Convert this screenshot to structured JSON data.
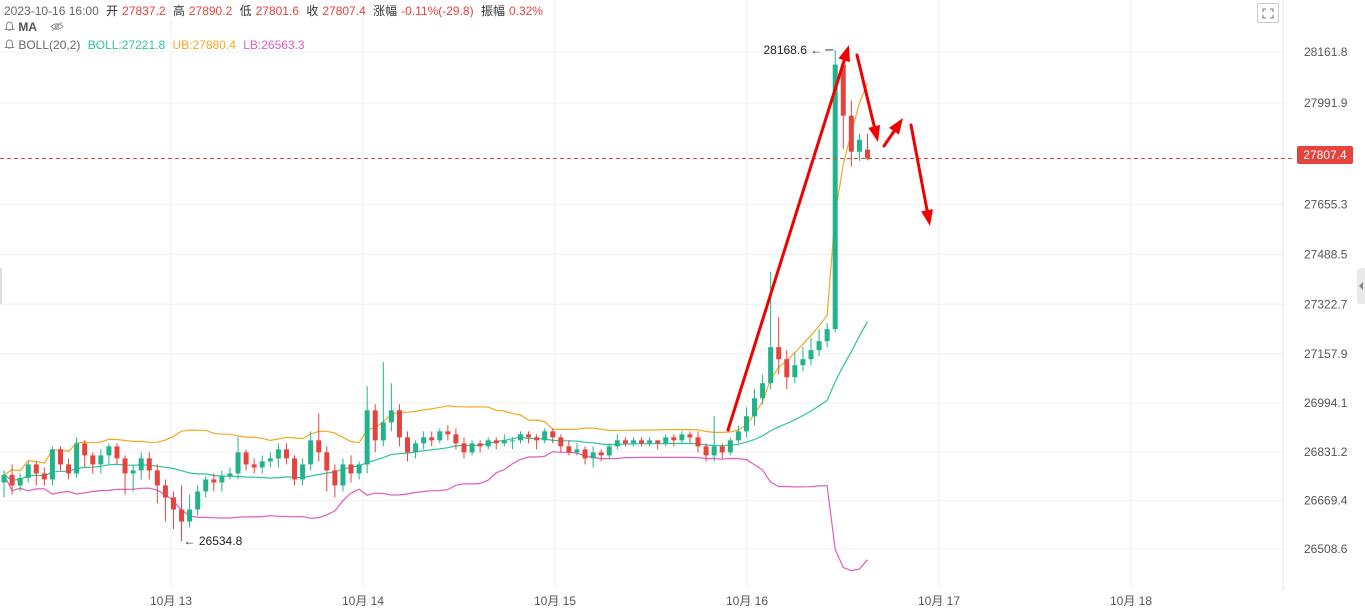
{
  "header": {
    "datetime": "2023-10-16 16:00",
    "open_label": "开",
    "open": "27837.2",
    "high_label": "高",
    "high": "27890.2",
    "low_label": "低",
    "low": "27801.6",
    "close_label": "收",
    "close": "27807.4",
    "change_label": "涨幅",
    "change": "-0.11%(-29.8)",
    "amplitude_label": "振幅",
    "amplitude": "0.32%",
    "ma_label": "MA",
    "boll_label": "BOLL(20,2)",
    "boll_mid": "BOLL:27221.8",
    "boll_ub": "UB:27880.4",
    "boll_lb": "LB:26563.3"
  },
  "current_price_label": "27807.4",
  "colors": {
    "up": "#22b38a",
    "down": "#e5443e",
    "boll_mid": "#2ec3a0",
    "boll_ub": "#f2a922",
    "boll_lb": "#e25bbf",
    "arrow": "#f00000",
    "grid": "#f0f0f0"
  },
  "chart_data": {
    "type": "candlestick",
    "y_ticks": [
      "28161.8",
      "27991.9",
      "27655.3",
      "27488.5",
      "27322.7",
      "27157.9",
      "26994.1",
      "26831.2",
      "26669.4",
      "26508.6"
    ],
    "y_tick_values": [
      28161.8,
      27991.9,
      27655.3,
      27488.5,
      27322.7,
      27157.9,
      26994.1,
      26831.2,
      26669.4,
      26508.6
    ],
    "current_price": 27807.4,
    "x_ticks": [
      "10月 13",
      "10月 14",
      "10月 15",
      "10月 16",
      "10月 17",
      "10月 18"
    ],
    "annotations": [
      {
        "label": "28168.6",
        "value": 28168.6
      },
      {
        "label": "26534.8",
        "value": 26534.8
      }
    ],
    "candles": [
      [
        26730,
        26755,
        26680,
        26770
      ],
      [
        26755,
        26720,
        26690,
        26790
      ],
      [
        26720,
        26745,
        26700,
        26760
      ],
      [
        26745,
        26790,
        26730,
        26800
      ],
      [
        26790,
        26760,
        26720,
        26800
      ],
      [
        26760,
        26740,
        26720,
        26780
      ],
      [
        26740,
        26840,
        26720,
        26850
      ],
      [
        26840,
        26790,
        26770,
        26850
      ],
      [
        26790,
        26760,
        26740,
        26810
      ],
      [
        26760,
        26860,
        26745,
        26880
      ],
      [
        26860,
        26820,
        26780,
        26870
      ],
      [
        26820,
        26790,
        26760,
        26830
      ],
      [
        26790,
        26820,
        26760,
        26840
      ],
      [
        26820,
        26850,
        26790,
        26860
      ],
      [
        26850,
        26810,
        26790,
        26860
      ],
      [
        26810,
        26760,
        26690,
        26820
      ],
      [
        26760,
        26770,
        26700,
        26790
      ],
      [
        26770,
        26810,
        26740,
        26830
      ],
      [
        26810,
        26770,
        26740,
        26830
      ],
      [
        26770,
        26720,
        26660,
        26790
      ],
      [
        26720,
        26680,
        26600,
        26740
      ],
      [
        26680,
        26640,
        26575,
        26700
      ],
      [
        26640,
        26600,
        26534.8,
        26720
      ],
      [
        26600,
        26640,
        26580,
        26690
      ],
      [
        26640,
        26700,
        26620,
        26720
      ],
      [
        26700,
        26740,
        26680,
        26750
      ],
      [
        26740,
        26730,
        26700,
        26760
      ],
      [
        26730,
        26750,
        26700,
        26770
      ],
      [
        26750,
        26760,
        26740,
        26780
      ],
      [
        26760,
        26830,
        26740,
        26880
      ],
      [
        26830,
        26790,
        26770,
        26840
      ],
      [
        26790,
        26780,
        26760,
        26810
      ],
      [
        26780,
        26800,
        26760,
        26820
      ],
      [
        26800,
        26810,
        26780,
        26830
      ],
      [
        26810,
        26840,
        26780,
        26860
      ],
      [
        26840,
        26810,
        26790,
        26860
      ],
      [
        26810,
        26740,
        26720,
        26820
      ],
      [
        26740,
        26790,
        26720,
        26810
      ],
      [
        26790,
        26870,
        26770,
        26900
      ],
      [
        26870,
        26830,
        26800,
        26960
      ],
      [
        26830,
        26770,
        26700,
        26850
      ],
      [
        26770,
        26720,
        26680,
        26790
      ],
      [
        26720,
        26790,
        26700,
        26810
      ],
      [
        26790,
        26760,
        26730,
        26820
      ],
      [
        26760,
        26790,
        26740,
        26800
      ],
      [
        26790,
        26970,
        26760,
        27050
      ],
      [
        26970,
        26870,
        26830,
        26990
      ],
      [
        26870,
        26930,
        26850,
        27130
      ],
      [
        26930,
        26970,
        26900,
        27060
      ],
      [
        26970,
        26880,
        26850,
        26990
      ],
      [
        26880,
        26830,
        26800,
        26900
      ],
      [
        26830,
        26860,
        26810,
        26870
      ],
      [
        26860,
        26880,
        26840,
        26900
      ],
      [
        26880,
        26870,
        26850,
        26900
      ],
      [
        26870,
        26900,
        26860,
        26910
      ],
      [
        26900,
        26890,
        26870,
        26920
      ],
      [
        26890,
        26860,
        26840,
        26910
      ],
      [
        26860,
        26830,
        26810,
        26880
      ],
      [
        26830,
        26860,
        26820,
        26870
      ],
      [
        26860,
        26850,
        26830,
        26870
      ],
      [
        26850,
        26870,
        26840,
        26880
      ],
      [
        26870,
        26860,
        26840,
        26880
      ],
      [
        26860,
        26870,
        26850,
        26890
      ],
      [
        26870,
        26870,
        26840,
        26880
      ],
      [
        26870,
        26890,
        26860,
        26900
      ],
      [
        26890,
        26880,
        26860,
        26900
      ],
      [
        26880,
        26870,
        26840,
        26890
      ],
      [
        26870,
        26900,
        26860,
        26910
      ],
      [
        26900,
        26880,
        26860,
        26910
      ],
      [
        26880,
        26850,
        26830,
        26890
      ],
      [
        26850,
        26830,
        26820,
        26870
      ],
      [
        26830,
        26840,
        26820,
        26860
      ],
      [
        26840,
        26810,
        26790,
        26850
      ],
      [
        26810,
        26830,
        26780,
        26850
      ],
      [
        26830,
        26820,
        26800,
        26840
      ],
      [
        26820,
        26850,
        26810,
        26860
      ],
      [
        26850,
        26870,
        26840,
        26890
      ],
      [
        26870,
        26860,
        26850,
        26880
      ],
      [
        26860,
        26870,
        26850,
        26880
      ],
      [
        26870,
        26860,
        26850,
        26880
      ],
      [
        26860,
        26870,
        26850,
        26880
      ],
      [
        26870,
        26860,
        26840,
        26870
      ],
      [
        26860,
        26880,
        26850,
        26890
      ],
      [
        26880,
        26870,
        26850,
        26890
      ],
      [
        26870,
        26890,
        26860,
        26900
      ],
      [
        26890,
        26880,
        26860,
        26900
      ],
      [
        26880,
        26850,
        26830,
        26900
      ],
      [
        26850,
        26820,
        26800,
        26860
      ],
      [
        26820,
        26850,
        26800,
        26950
      ],
      [
        26850,
        26830,
        26810,
        26860
      ],
      [
        26830,
        26870,
        26820,
        26880
      ],
      [
        26870,
        26900,
        26860,
        26920
      ],
      [
        26900,
        26950,
        26880,
        26980
      ],
      [
        26950,
        27010,
        26920,
        27040
      ],
      [
        27010,
        27060,
        26990,
        27090
      ],
      [
        27060,
        27180,
        27040,
        27430
      ],
      [
        27180,
        27140,
        27090,
        27280
      ],
      [
        27140,
        27080,
        27040,
        27170
      ],
      [
        27080,
        27120,
        27060,
        27160
      ],
      [
        27120,
        27140,
        27100,
        27180
      ],
      [
        27140,
        27170,
        27120,
        27210
      ],
      [
        27170,
        27200,
        27150,
        27240
      ],
      [
        27200,
        27240,
        27180,
        27260
      ],
      [
        27240,
        28120,
        27230,
        28168.6
      ],
      [
        28120,
        27950,
        27840,
        28160
      ],
      [
        27950,
        27830,
        27780,
        28000
      ],
      [
        27830,
        27870,
        27800,
        27890
      ],
      [
        27837.2,
        27807.4,
        27801.6,
        27890.2
      ]
    ]
  }
}
